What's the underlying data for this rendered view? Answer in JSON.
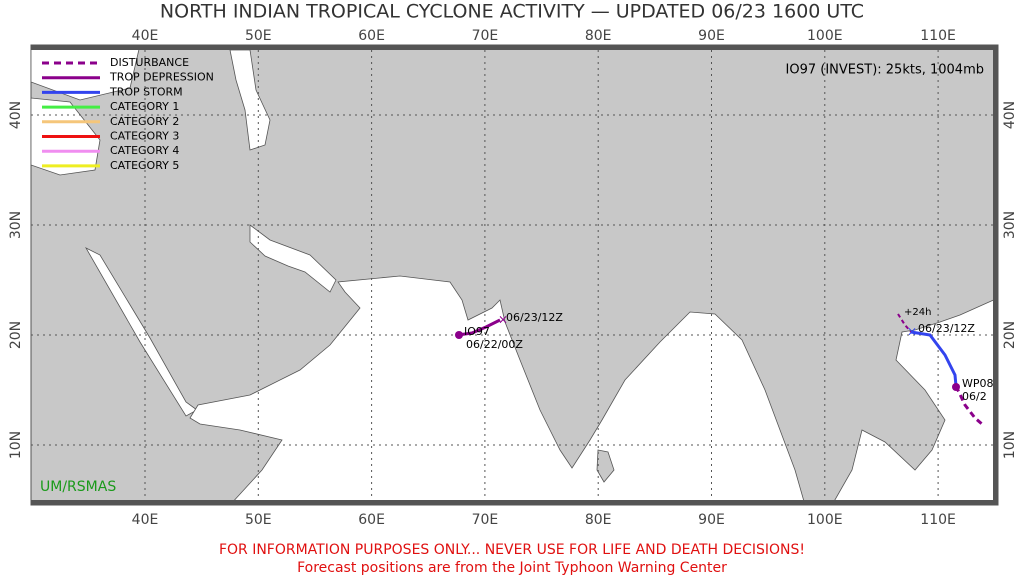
{
  "title": "NORTH INDIAN TROPICAL CYCLONE ACTIVITY — UPDATED 06/23 1600 UTC",
  "longitude_labels": [
    "40E",
    "50E",
    "60E",
    "70E",
    "80E",
    "90E",
    "100E",
    "110E"
  ],
  "latitude_labels": [
    "40N",
    "30N",
    "20N",
    "10N"
  ],
  "legend": [
    {
      "label": "DISTURBANCE",
      "color": "#8b008b"
    },
    {
      "label": "TROP DEPRESSION",
      "color": "#8b008b"
    },
    {
      "label": "TROP STORM",
      "color": "#3344ee"
    },
    {
      "label": "CATEGORY 1",
      "color": "#44ee44"
    },
    {
      "label": "CATEGORY 2",
      "color": "#f5c67a"
    },
    {
      "label": "CATEGORY 3",
      "color": "#ee1111"
    },
    {
      "label": "CATEGORY 4",
      "color": "#f08ef0"
    },
    {
      "label": "CATEGORY 5",
      "color": "#eeee22"
    }
  ],
  "storm_info": "IO97 (INVEST): 25kts, 1004mb",
  "storms": [
    {
      "name": "IO97",
      "labels": [
        "06/23/12Z",
        "06/22/00Z"
      ]
    },
    {
      "name": "WP08",
      "labels": [
        "+24h",
        "06/23/12Z",
        "06/2"
      ]
    }
  ],
  "credit": "UM/RSMAS",
  "disclaimer": [
    "FOR INFORMATION PURPOSES ONLY... NEVER USE FOR LIFE AND DEATH DECISIONS!",
    "Forecast positions are from the Joint Typhoon Warning Center"
  ]
}
